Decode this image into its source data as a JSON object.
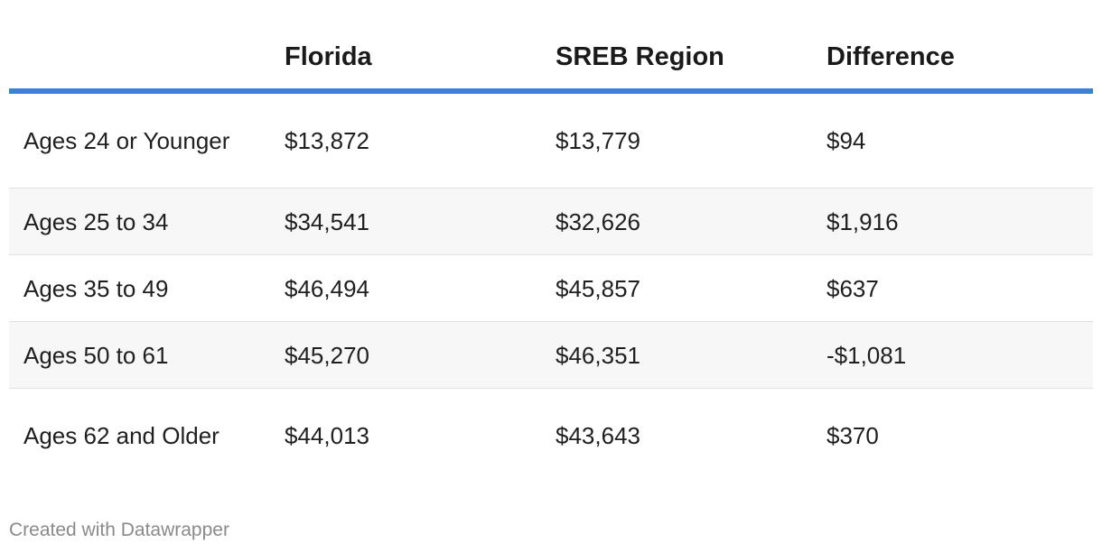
{
  "chart_data": {
    "type": "table",
    "columns": [
      "",
      "Florida",
      "SREB Region",
      "Difference"
    ],
    "rows": [
      {
        "label": "Ages 24 or Younger",
        "florida": "$13,872",
        "sreb": "$13,779",
        "difference": "$94"
      },
      {
        "label": "Ages 25 to 34",
        "florida": "$34,541",
        "sreb": "$32,626",
        "difference": "$1,916"
      },
      {
        "label": "Ages 35 to 49",
        "florida": "$46,494",
        "sreb": "$45,857",
        "difference": "$637"
      },
      {
        "label": "Ages 50 to 61",
        "florida": "$45,270",
        "sreb": "$46,351",
        "difference": "-$1,081"
      },
      {
        "label": "Ages 62 and Older",
        "florida": "$44,013",
        "sreb": "$43,643",
        "difference": "$370"
      }
    ],
    "accent_color": "#3a82d6"
  },
  "footer": {
    "credit": "Created with Datawrapper"
  }
}
